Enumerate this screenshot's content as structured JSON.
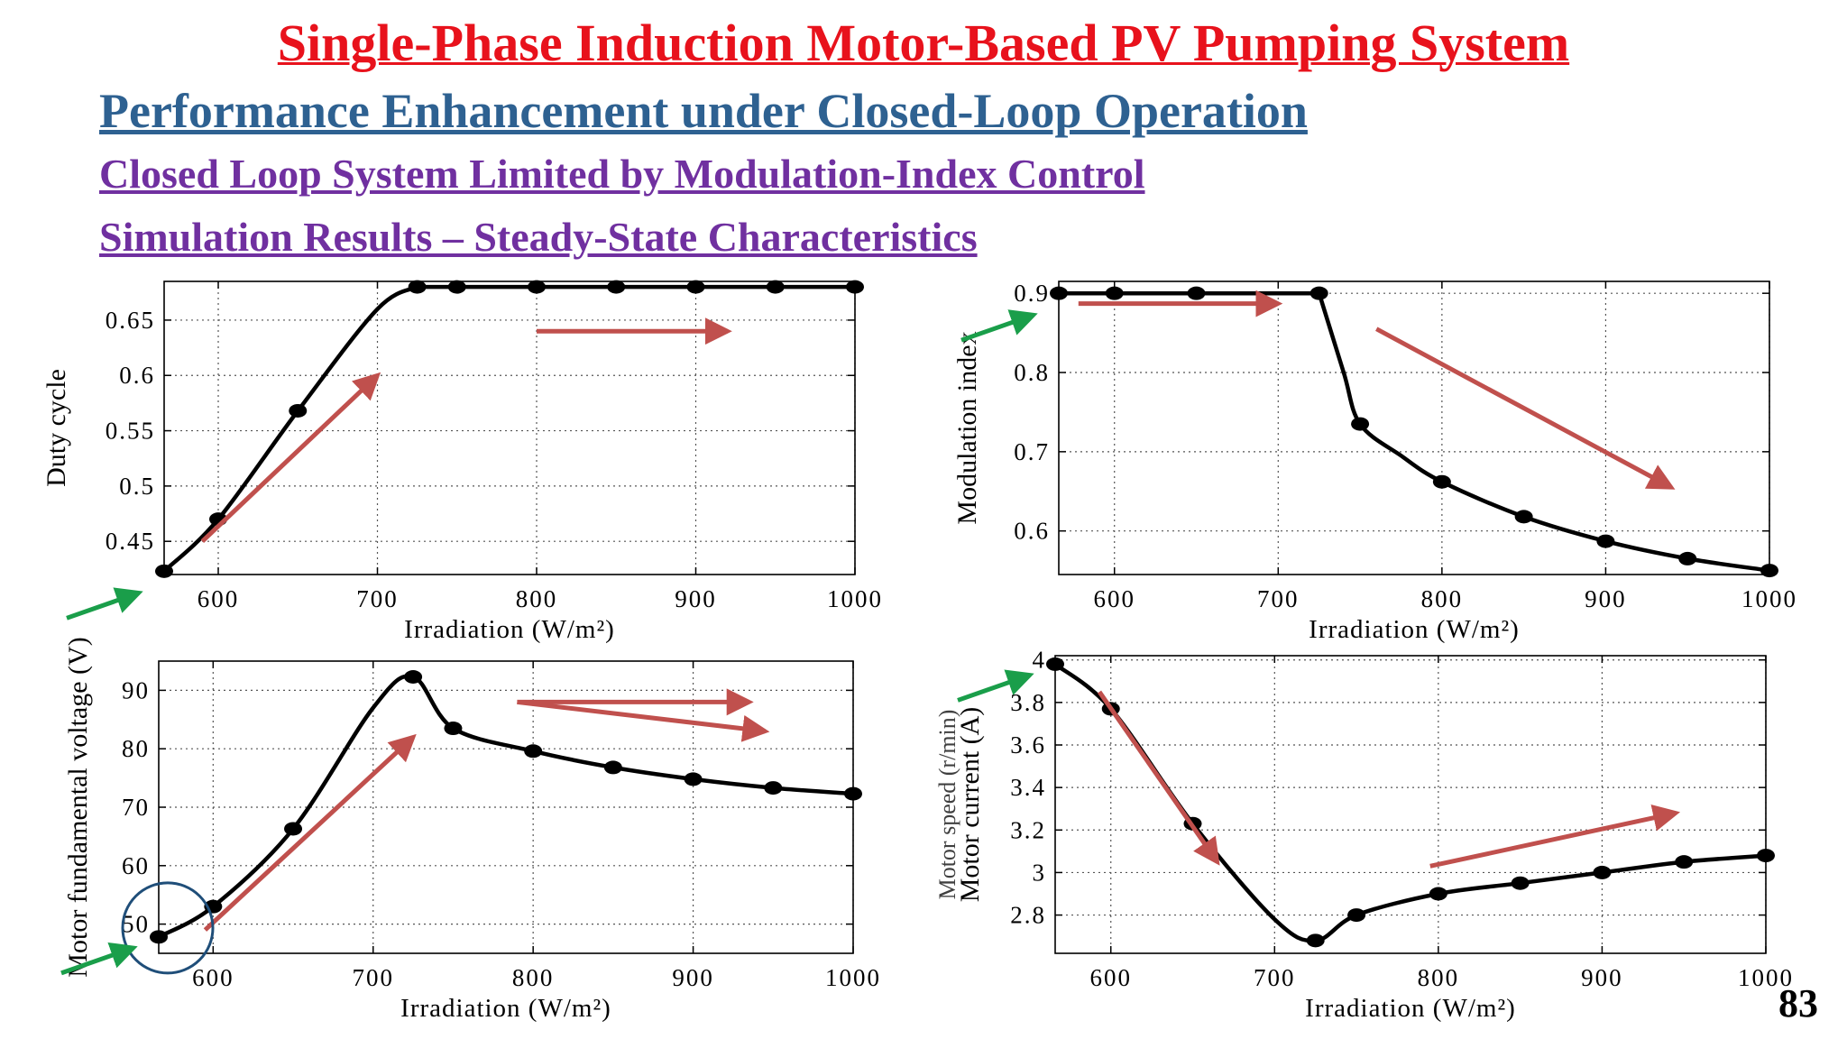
{
  "slide": {
    "title": "Single-Phase Induction Motor-Based PV Pumping System",
    "subtitle": "Performance Enhancement under Closed-Loop Operation",
    "heading1": "Closed Loop System Limited by Modulation-Index Control",
    "heading2": "Simulation Results – Steady-State Characteristics",
    "page_number": "83"
  },
  "colors": {
    "title": "#e8121c",
    "subtitle": "#2e6191",
    "heading": "#7030a0",
    "trend_arrow": "#c0504d",
    "green_arrow": "#1a9e4a",
    "highlight_circle": "#1f4e79",
    "series": "#000000"
  },
  "chart_data": [
    {
      "id": "duty",
      "type": "line",
      "xlabel": "Irradiation (W/m²)",
      "ylabel": "Duty cycle",
      "xlim": [
        566,
        1000
      ],
      "ylim": [
        0.42,
        0.685
      ],
      "xticks": [
        600,
        700,
        800,
        900,
        1000
      ],
      "yticks": [
        0.45,
        0.5,
        0.55,
        0.6,
        0.65
      ],
      "grid": true,
      "x": [
        566,
        600,
        650,
        700,
        725,
        750,
        800,
        850,
        900,
        950,
        1000
      ],
      "y": [
        0.423,
        0.47,
        0.568,
        0.66,
        0.68,
        0.68,
        0.68,
        0.68,
        0.68,
        0.68,
        0.68
      ],
      "markers": [
        566,
        600,
        650,
        725,
        750,
        800,
        850,
        900,
        950,
        1000
      ],
      "annotations": [
        "green arrow at start point",
        "rising trend arrow",
        "flat trend arrow"
      ]
    },
    {
      "id": "mod",
      "type": "line",
      "xlabel": "Irradiation (W/m²)",
      "ylabel": "Modulation index",
      "xlim": [
        566,
        1000
      ],
      "ylim": [
        0.545,
        0.915
      ],
      "xticks": [
        600,
        700,
        800,
        900,
        1000
      ],
      "yticks": [
        0.6,
        0.7,
        0.8,
        0.9
      ],
      "grid": true,
      "x": [
        566,
        600,
        650,
        700,
        725,
        740,
        750,
        775,
        800,
        850,
        900,
        950,
        1000
      ],
      "y": [
        0.9,
        0.9,
        0.9,
        0.9,
        0.9,
        0.8,
        0.735,
        0.695,
        0.662,
        0.618,
        0.587,
        0.565,
        0.55
      ],
      "markers": [
        566,
        600,
        650,
        725,
        750,
        800,
        850,
        900,
        950,
        1000
      ],
      "annotations": [
        "green arrow at start point",
        "flat trend arrow",
        "falling trend arrow"
      ]
    },
    {
      "id": "volt",
      "type": "line",
      "xlabel": "Irradiation (W/m²)",
      "ylabel": "Motor fundamental voltage (V)",
      "xlim": [
        566,
        1000
      ],
      "ylim": [
        45,
        95
      ],
      "xticks": [
        600,
        700,
        800,
        900,
        1000
      ],
      "yticks": [
        50,
        60,
        70,
        80,
        90
      ],
      "grid": true,
      "x": [
        566,
        600,
        650,
        700,
        725,
        750,
        800,
        850,
        900,
        950,
        1000
      ],
      "y": [
        47.8,
        53,
        66.3,
        87,
        92.3,
        83.5,
        79.6,
        76.8,
        74.8,
        73.3,
        72.3
      ],
      "markers": [
        566,
        600,
        650,
        725,
        750,
        800,
        850,
        900,
        950,
        1000
      ],
      "annotations": [
        "circle around start point",
        "green arrow at start point",
        "rising trend arrow",
        "two trend arrows after peak"
      ]
    },
    {
      "id": "curr",
      "type": "line",
      "xlabel": "Irradiation (W/m²)",
      "ylabel": "Motor current (A)",
      "ylabel_overlay": "Motor speed (r/min)",
      "xlim": [
        566,
        1000
      ],
      "ylim": [
        2.62,
        4.02
      ],
      "xticks": [
        600,
        700,
        800,
        900,
        1000
      ],
      "yticks": [
        2.8,
        3,
        3.2,
        3.4,
        3.6,
        3.8,
        4
      ],
      "grid": true,
      "x": [
        566,
        600,
        650,
        700,
        725,
        750,
        800,
        850,
        900,
        950,
        1000
      ],
      "y": [
        3.98,
        3.77,
        3.23,
        2.78,
        2.68,
        2.8,
        2.9,
        2.95,
        3.0,
        3.05,
        3.08
      ],
      "markers": [
        566,
        600,
        650,
        725,
        750,
        800,
        850,
        900,
        950,
        1000
      ],
      "annotations": [
        "green arrow at start point",
        "falling trend arrow",
        "rising trend arrow"
      ]
    }
  ]
}
